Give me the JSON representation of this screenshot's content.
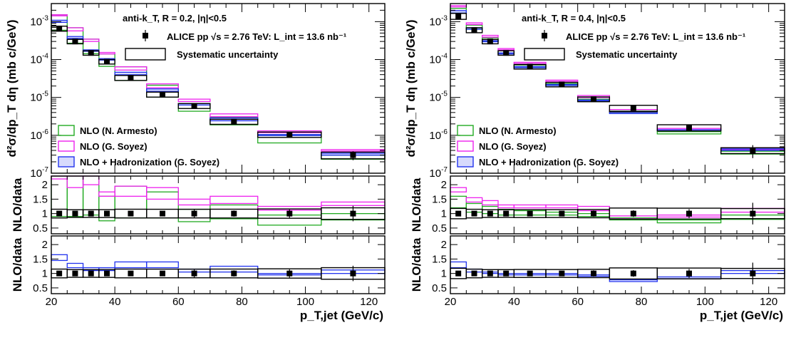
{
  "colors": {
    "armesto": "#22aa22",
    "soyez": "#ee22ee",
    "hadro": "#2233ee",
    "data": "#000000",
    "frame": "#000000"
  },
  "text": {
    "ylabel_main": "d²σ/dp_T dη (mb c/GeV)",
    "ylabel_ratio": "NLO/data",
    "xlabel": "p_T,jet (GeV/c)",
    "experiment": "ALICE pp  √s = 2.76 TeV: L_int = 13.6 nb⁻¹",
    "systematic": "Systematic uncertainty",
    "legend_armesto": "NLO (N. Armesto)",
    "legend_soyez": "NLO (G. Soyez)",
    "legend_hadro": "NLO + Hadronization (G. Soyez)"
  },
  "chart_data": [
    {
      "type": "bar",
      "title": "anti-k_T, R = 0.2, |η|<0.5",
      "xlim": [
        20,
        125
      ],
      "ylim_main": [
        1e-07,
        0.003
      ],
      "ylim_ratio": [
        0.3,
        2.3
      ],
      "log_y_main": true,
      "bins": [
        [
          20,
          25
        ],
        [
          25,
          30
        ],
        [
          30,
          35
        ],
        [
          35,
          40
        ],
        [
          40,
          50
        ],
        [
          50,
          60
        ],
        [
          60,
          70
        ],
        [
          70,
          85
        ],
        [
          85,
          105
        ],
        [
          105,
          125
        ]
      ],
      "data": [
        {
          "x": 22.5,
          "y": 0.00066,
          "stat": 3e-05,
          "sys": 0.0001
        },
        {
          "x": 27.5,
          "y": 0.0003,
          "stat": 1.5e-05,
          "sys": 4e-05
        },
        {
          "x": 32.5,
          "y": 0.00015,
          "stat": 8e-06,
          "sys": 2e-05
        },
        {
          "x": 37.5,
          "y": 8.8e-05,
          "stat": 5e-06,
          "sys": 1.2e-05
        },
        {
          "x": 45,
          "y": 3.3e-05,
          "stat": 2e-06,
          "sys": 5e-06
        },
        {
          "x": 55,
          "y": 1.2e-05,
          "stat": 9e-07,
          "sys": 1.8e-06
        },
        {
          "x": 65,
          "y": 6e-06,
          "stat": 8e-07,
          "sys": 9e-07
        },
        {
          "x": 77.5,
          "y": 2.3e-06,
          "stat": 2.5e-07,
          "sys": 3.5e-07
        },
        {
          "x": 95,
          "y": 1.05e-06,
          "stat": 1.5e-07,
          "sys": 1.7e-07
        },
        {
          "x": 115,
          "y": 3e-07,
          "stat": 8e-08,
          "sys": 6e-08
        }
      ],
      "series": [
        {
          "name": "NLO (N. Armesto)",
          "key": "armesto",
          "ratio_lo": [
            0.9,
            0.9,
            0.95,
            0.75,
            0.85,
            0.85,
            0.72,
            0.82,
            0.6,
            0.78
          ],
          "ratio_hi": [
            2.3,
            2.3,
            2.3,
            1.6,
            1.95,
            1.75,
            1.15,
            1.3,
            0.95,
            1.0
          ]
        },
        {
          "name": "NLO (G. Soyez)",
          "key": "soyez",
          "ratio_lo": [
            2.2,
            1.9,
            2.0,
            1.6,
            1.6,
            1.5,
            1.3,
            1.35,
            1.12,
            1.28
          ],
          "ratio_hi": [
            2.3,
            2.3,
            2.3,
            1.75,
            1.95,
            1.9,
            1.5,
            1.6,
            1.25,
            1.4
          ]
        },
        {
          "name": "NLO + Hadronization (G. Soyez)",
          "key": "hadro",
          "ratio_lo": [
            1.45,
            1.2,
            1.1,
            1.1,
            1.2,
            1.2,
            1.05,
            1.05,
            0.95,
            1.0
          ],
          "ratio_hi": [
            1.65,
            1.35,
            1.2,
            1.2,
            1.4,
            1.4,
            1.15,
            1.25,
            1.0,
            1.12
          ]
        }
      ]
    },
    {
      "type": "bar",
      "title": "anti-k_T, R = 0.4, |η|<0.5",
      "xlim": [
        20,
        125
      ],
      "ylim_main": [
        1e-07,
        0.003
      ],
      "ylim_ratio": [
        0.3,
        2.3
      ],
      "log_y_main": true,
      "bins": [
        [
          20,
          25
        ],
        [
          25,
          30
        ],
        [
          30,
          35
        ],
        [
          35,
          40
        ],
        [
          40,
          50
        ],
        [
          50,
          60
        ],
        [
          60,
          70
        ],
        [
          70,
          85
        ],
        [
          85,
          105
        ],
        [
          105,
          125
        ]
      ],
      "data": [
        {
          "x": 22.5,
          "y": 0.0014,
          "stat": 6e-05,
          "sys": 0.00025
        },
        {
          "x": 27.5,
          "y": 0.0006,
          "stat": 3e-05,
          "sys": 9e-05
        },
        {
          "x": 32.5,
          "y": 0.0003,
          "stat": 1.5e-05,
          "sys": 4e-05
        },
        {
          "x": 37.5,
          "y": 0.00015,
          "stat": 8e-06,
          "sys": 2e-05
        },
        {
          "x": 45,
          "y": 6.5e-05,
          "stat": 4e-06,
          "sys": 9e-06
        },
        {
          "x": 55,
          "y": 2.2e-05,
          "stat": 1.5e-06,
          "sys": 3e-06
        },
        {
          "x": 65,
          "y": 9e-06,
          "stat": 1e-06,
          "sys": 1.3e-06
        },
        {
          "x": 77.5,
          "y": 5.2e-06,
          "stat": 6e-07,
          "sys": 1e-06
        },
        {
          "x": 95,
          "y": 1.6e-06,
          "stat": 2.5e-07,
          "sys": 3e-07
        },
        {
          "x": 115,
          "y": 4e-07,
          "stat": 1.5e-07,
          "sys": 7e-08
        }
      ],
      "series": [
        {
          "name": "NLO (N. Armesto)",
          "key": "armesto",
          "ratio_lo": [
            1.2,
            1.05,
            1.0,
            0.95,
            0.95,
            0.95,
            0.9,
            0.78,
            0.68,
            0.8
          ],
          "ratio_hi": [
            1.6,
            1.35,
            1.25,
            1.15,
            1.1,
            1.05,
            1.0,
            0.85,
            0.78,
            0.95
          ]
        },
        {
          "name": "NLO (G. Soyez)",
          "key": "soyez",
          "ratio_lo": [
            1.75,
            1.4,
            1.3,
            1.2,
            1.2,
            1.2,
            1.1,
            0.82,
            0.88,
            1.05
          ],
          "ratio_hi": [
            1.9,
            1.55,
            1.45,
            1.3,
            1.3,
            1.3,
            1.25,
            0.92,
            0.95,
            1.18
          ]
        },
        {
          "name": "NLO + Hadronization (G. Soyez)",
          "key": "hadro",
          "ratio_lo": [
            1.2,
            1.05,
            1.0,
            0.95,
            0.95,
            0.95,
            0.9,
            0.72,
            0.82,
            1.0
          ],
          "ratio_hi": [
            1.4,
            1.15,
            1.05,
            1.0,
            1.0,
            1.0,
            0.95,
            0.78,
            0.88,
            1.1
          ]
        }
      ]
    }
  ]
}
